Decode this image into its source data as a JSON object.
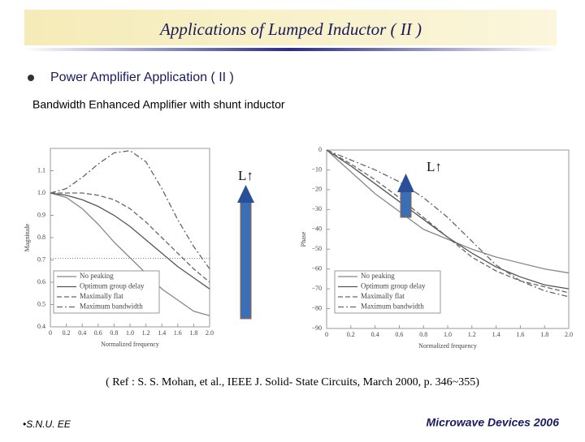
{
  "header": {
    "title": "Applications of Lumped Inductor ( II )"
  },
  "bullet": "Power Amplifier Application ( II )",
  "subtitle": "Bandwidth Enhanced Amplifier with shunt inductor",
  "chart_data": [
    {
      "type": "line",
      "ylabel": "Magnitude",
      "xlabel": "Normalized frequency",
      "annotation": "L↑",
      "x": [
        0,
        0.2,
        0.4,
        0.6,
        0.8,
        1,
        1.2,
        1.4,
        1.6,
        1.8,
        2
      ],
      "xlim": [
        0,
        2
      ],
      "ylim": [
        0.4,
        1.2
      ],
      "xticks": [
        0,
        0.2,
        0.4,
        0.6,
        0.8,
        {
          "value": 1,
          "label": "1.0"
        },
        1.2,
        1.4,
        1.6,
        1.8,
        {
          "value": 2,
          "label": "2.0"
        }
      ],
      "yticks": [
        0.4,
        0.5,
        0.6,
        0.7,
        0.8,
        0.9,
        {
          "value": 1,
          "label": "1.0"
        },
        1.1
      ],
      "hline": 0.707,
      "series": [
        {
          "name": "No peaking",
          "color": "#888888",
          "dash": "none",
          "values": [
            1,
            0.98,
            0.93,
            0.86,
            0.78,
            0.71,
            0.64,
            0.57,
            0.52,
            0.47,
            0.45
          ]
        },
        {
          "name": "Optimum group delay",
          "color": "#555555",
          "dash": "none",
          "values": [
            1,
            0.99,
            0.97,
            0.94,
            0.9,
            0.85,
            0.79,
            0.73,
            0.67,
            0.62,
            0.57
          ]
        },
        {
          "name": "Maximally flat",
          "color": "#666666",
          "dash": "6 3",
          "values": [
            1,
            1,
            1,
            0.99,
            0.97,
            0.93,
            0.87,
            0.8,
            0.73,
            0.66,
            0.6
          ]
        },
        {
          "name": "Maximum bandwidth",
          "color": "#666666",
          "dash": "7 3 2 3",
          "values": [
            1,
            1.02,
            1.07,
            1.13,
            1.18,
            1.19,
            1.14,
            1.02,
            0.88,
            0.76,
            0.66
          ]
        }
      ]
    },
    {
      "type": "line",
      "ylabel": "Phase",
      "xlabel": "Normalized frequency",
      "annotation": "L↑",
      "x": [
        0,
        0.2,
        0.4,
        0.6,
        0.8,
        1,
        1.2,
        1.4,
        1.6,
        1.8,
        2
      ],
      "xlim": [
        0,
        2
      ],
      "ylim": [
        -90,
        0
      ],
      "xticks": [
        0,
        0.2,
        0.4,
        0.6,
        0.8,
        {
          "value": 1,
          "label": "1.0"
        },
        1.2,
        1.4,
        1.6,
        1.8,
        {
          "value": 2,
          "label": "2.0"
        }
      ],
      "yticks": [
        0,
        {
          "value": -10,
          "label": "−10"
        },
        {
          "value": -20,
          "label": "−20"
        },
        {
          "value": -30,
          "label": "−30"
        },
        {
          "value": -40,
          "label": "−40"
        },
        {
          "value": -50,
          "label": "−50"
        },
        {
          "value": -60,
          "label": "−60"
        },
        {
          "value": -70,
          "label": "−70"
        },
        {
          "value": -80,
          "label": "−80"
        },
        {
          "value": -90,
          "label": "−90"
        }
      ],
      "series": [
        {
          "name": "No peaking",
          "color": "#888888",
          "dash": "none",
          "values": [
            0,
            -11,
            -22,
            -31,
            -40,
            -45,
            -50,
            -54,
            -57,
            -60,
            -62
          ]
        },
        {
          "name": "Optimum group delay",
          "color": "#555555",
          "dash": "none",
          "values": [
            0,
            -8,
            -17,
            -26,
            -35,
            -44,
            -52,
            -59,
            -64,
            -68,
            -70
          ]
        },
        {
          "name": "Maximally flat",
          "color": "#666666",
          "dash": "6 3",
          "values": [
            0,
            -7,
            -15,
            -24,
            -34,
            -44,
            -54,
            -61,
            -66,
            -69,
            -72
          ]
        },
        {
          "name": "Maximum bandwidth",
          "color": "#666666",
          "dash": "7 3 2 3",
          "values": [
            0,
            -5,
            -10,
            -16,
            -24,
            -34,
            -46,
            -58,
            -66,
            -71,
            -74
          ]
        }
      ]
    }
  ],
  "reference": "( Ref : S. S. Mohan, et al., IEEE J. Solid- State Circuits, March 2000, p. 346~355)",
  "footer": {
    "left": "•S.N.U. EE",
    "right": "Microwave Devices 2006"
  }
}
